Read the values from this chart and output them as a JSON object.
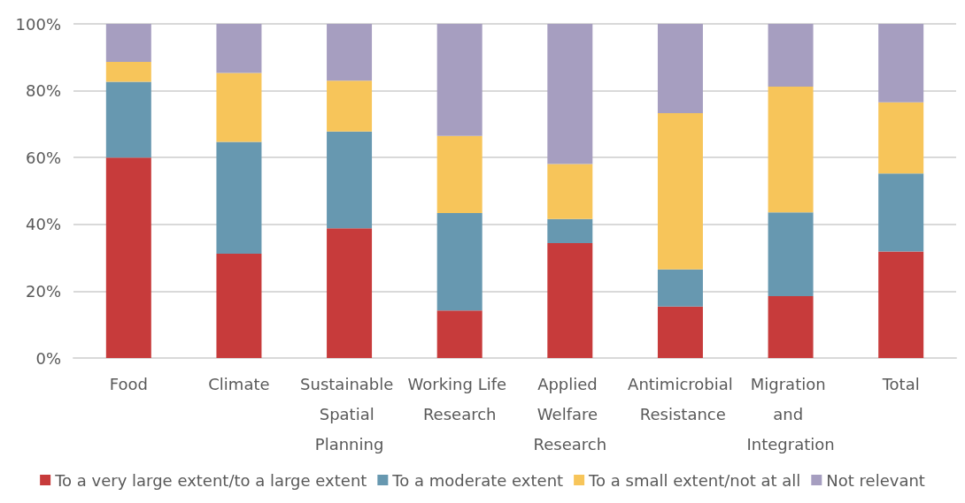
{
  "chart_data": {
    "type": "bar",
    "stacked": true,
    "categories": [
      "Food",
      "Climate",
      "Sustainable Spatial Planning",
      "Working Life Research",
      "Applied Welfare Research",
      "Antimicrobial Resistance",
      "Migration and Integration",
      "Total"
    ],
    "series": [
      {
        "name": "To a very large extent/to a large extent",
        "color": "#c73b3b",
        "values": [
          60,
          31.2,
          38.8,
          14.2,
          34.4,
          15.4,
          18.5,
          31.9
        ]
      },
      {
        "name": "To a moderate extent",
        "color": "#6798b0",
        "values": [
          22.7,
          33.5,
          29,
          29.2,
          7.2,
          11.1,
          25.1,
          23.3
        ]
      },
      {
        "name": "To a small extent/not at all",
        "color": "#f7c55a",
        "values": [
          5.9,
          20.6,
          15.2,
          23.1,
          16.5,
          46.8,
          37.6,
          21.3
        ]
      },
      {
        "name": "Not relevant",
        "color": "#a69ec0",
        "values": [
          11.4,
          14.7,
          17,
          33.5,
          41.9,
          26.7,
          18.8,
          23.5
        ]
      }
    ],
    "ylim": [
      0,
      100
    ],
    "yticks": [
      {
        "value": 0,
        "label": "0%"
      },
      {
        "value": 20,
        "label": "20%"
      },
      {
        "value": 40,
        "label": "40%"
      },
      {
        "value": 60,
        "label": "60%"
      },
      {
        "value": 80,
        "label": "80%"
      },
      {
        "value": 100,
        "label": "100%"
      }
    ],
    "grid": "y",
    "legend": "bottom"
  }
}
